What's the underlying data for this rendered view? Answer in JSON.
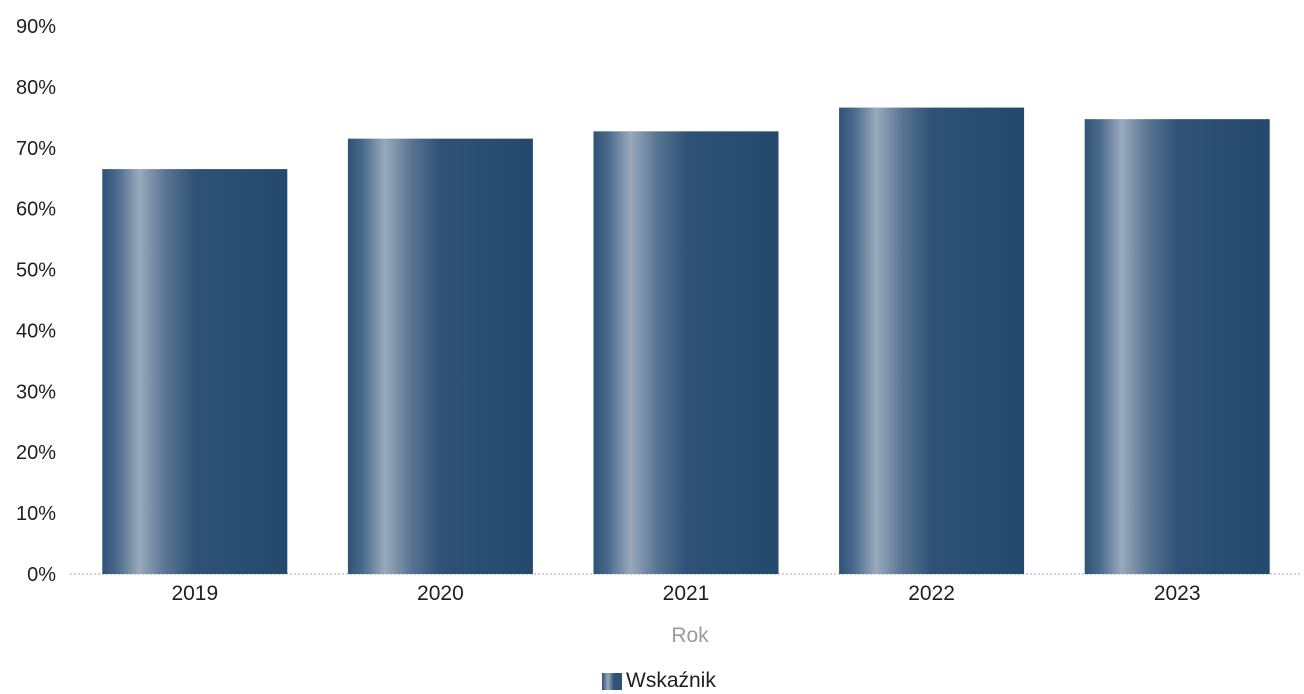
{
  "chart_data": {
    "type": "bar",
    "categories": [
      "2019",
      "2020",
      "2021",
      "2022",
      "2023"
    ],
    "series": [
      {
        "name": "Wskaźnik",
        "values": [
          66.5,
          71.5,
          72.7,
          76.6,
          74.7
        ]
      }
    ],
    "xlabel": "Rok",
    "ylabel": "",
    "ylim": [
      0,
      90
    ],
    "yticks": [
      "0%",
      "10%",
      "20%",
      "30%",
      "40%",
      "50%",
      "60%",
      "70%",
      "80%",
      "90%"
    ],
    "grid": false,
    "legend_position": "bottom-center",
    "colors": {
      "bar": "#2f5276",
      "bar_highlight": "#9aa9bb",
      "axis": "#9aa6c8",
      "text": "#1f1f1f",
      "xlabel": "#9a9a9a"
    }
  }
}
